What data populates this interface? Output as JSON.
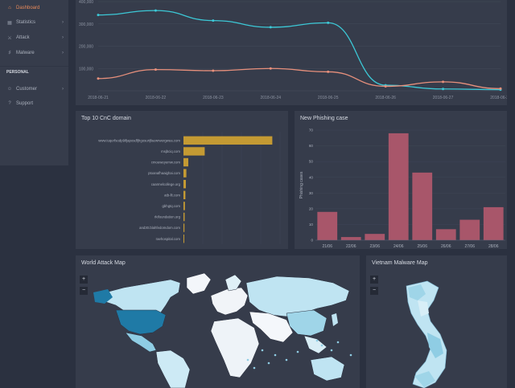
{
  "sidebar": {
    "items": [
      {
        "label": "Dashboard",
        "icon": "dashboard-icon",
        "glyph": "⌂",
        "active": true
      },
      {
        "label": "Statistics",
        "icon": "grid-icon",
        "glyph": "▦",
        "chevron": "›"
      },
      {
        "label": "Attack",
        "icon": "attack-icon",
        "glyph": "⚔",
        "chevron": "›"
      },
      {
        "label": "Malware",
        "icon": "malware-icon",
        "glyph": "♯",
        "chevron": "›"
      }
    ],
    "section": "PERSONAL",
    "personal": [
      {
        "label": "Customer",
        "icon": "user-icon",
        "glyph": "☺",
        "chevron": "›"
      },
      {
        "label": "Support",
        "icon": "help-icon",
        "glyph": "?"
      }
    ]
  },
  "timeline": {
    "chart_data": {
      "type": "line",
      "x": [
        "2018-06-21",
        "2018-06-22",
        "2018-06-23",
        "2018-06-24",
        "2018-06-25",
        "2018-06-26",
        "2018-06-27",
        "2018-06-28"
      ],
      "yticks": [
        "400,000",
        "300,000",
        "200,000",
        "100,000"
      ],
      "ylim": [
        0,
        400000
      ],
      "series": [
        {
          "values": [
            340000,
            360000,
            315000,
            285000,
            305000,
            25000,
            8000,
            5000
          ],
          "color": "#3cc8d6"
        },
        {
          "values": [
            55000,
            95000,
            90000,
            100000,
            85000,
            20000,
            40000,
            10000
          ],
          "color": "#e8907c"
        }
      ]
    }
  },
  "cnc": {
    "title": "Top 10 CnC domain",
    "chart_data": {
      "type": "bar",
      "orientation": "horizontal",
      "categories": [
        "www.iuqerfsodp9ifjaposdfjhgosurijfaewrwergwea.com",
        "msjbciq.com",
        "cmoeweyemw.com",
        "ptoanafhaaighai.com",
        "caarmelcollege.org",
        "atb-llt.com",
        "gbhgtq.com",
        "rkifoundation.org",
        "and30.blahfedomdom.com",
        "raehospital.com"
      ],
      "values": [
        92000,
        22000,
        5000,
        3000,
        2500,
        2000,
        1500,
        1200,
        1000,
        800
      ],
      "xticks": [
        "0",
        "20,000",
        "40,000",
        "60,000",
        "80,000",
        "100,000"
      ],
      "xlim": [
        0,
        105000
      ],
      "color": "#c49a33"
    }
  },
  "phishing": {
    "title": "New Phishing case",
    "chart_data": {
      "type": "bar",
      "categories": [
        "21/06",
        "22/06",
        "23/06",
        "24/06",
        "25/06",
        "26/06",
        "27/06",
        "28/06"
      ],
      "values": [
        18,
        2,
        4,
        68,
        43,
        7,
        13,
        21
      ],
      "yticks": [
        "70",
        "60",
        "50",
        "40",
        "30",
        "20",
        "10",
        "0"
      ],
      "ylim": [
        0,
        70
      ],
      "ylabel": "Phishing cases",
      "color": "#a8566a"
    }
  },
  "world": {
    "title": "World Attack Map",
    "zoom_in": "+",
    "zoom_out": "−"
  },
  "vietnam": {
    "title": "Vietnam Malware Map",
    "zoom_in": "+",
    "zoom_out": "−"
  }
}
